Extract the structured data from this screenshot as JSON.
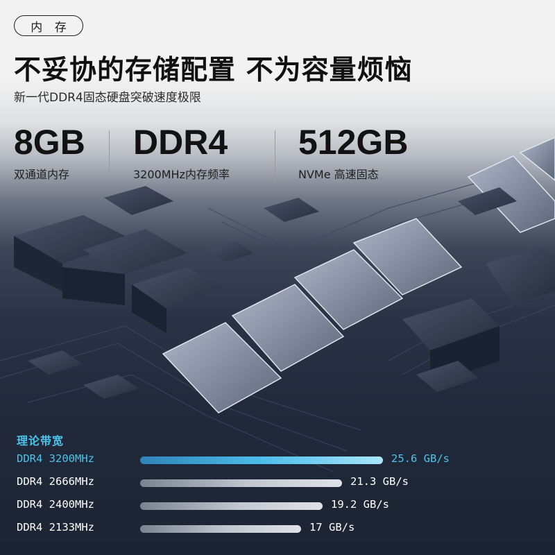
{
  "section_tag": "内 存",
  "headline": "不妥协的存储配置 不为容量烦恼",
  "subline": "新一代DDR4固态硬盘突破速度极限",
  "specs": [
    {
      "value": "8GB",
      "caption": "双通道内存"
    },
    {
      "value": "DDR4",
      "caption": "3200MHz内存频率"
    },
    {
      "value": "512GB",
      "caption": "NVMe 高速固态"
    }
  ],
  "bandwidth": {
    "title": "理论带宽",
    "max_value": 25.6,
    "rows": [
      {
        "label": "DDR4 3200MHz",
        "value": 25.6,
        "value_text": "25.6 GB/s",
        "highlight": true
      },
      {
        "label": "DDR4 2666MHz",
        "value": 21.3,
        "value_text": "21.3 GB/s",
        "highlight": false
      },
      {
        "label": "DDR4 2400MHz",
        "value": 19.2,
        "value_text": "19.2 GB/s",
        "highlight": false
      },
      {
        "label": "DDR4 2133MHz",
        "value": 17,
        "value_text": "17 GB/s",
        "highlight": false
      }
    ]
  },
  "colors": {
    "accent": "#4cc3ea",
    "headline": "#111111",
    "background": "#1f2737"
  }
}
